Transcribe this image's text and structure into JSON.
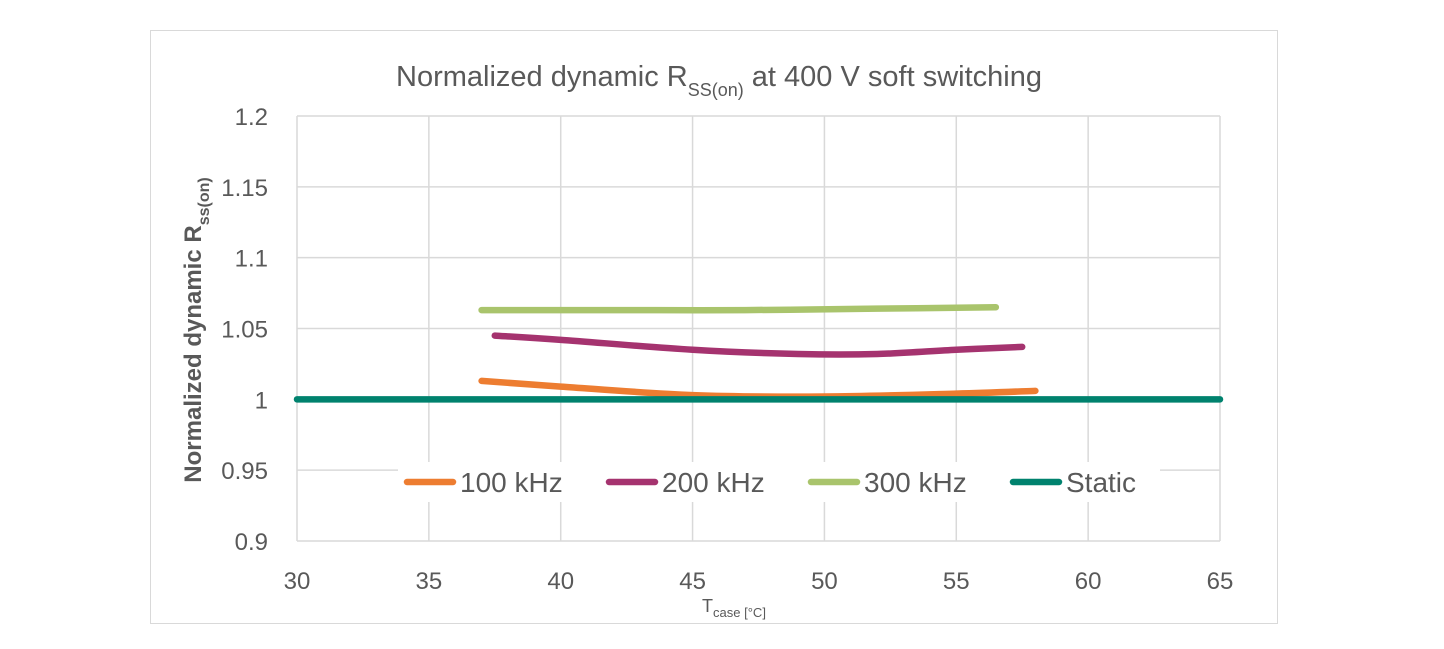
{
  "chart_data": {
    "type": "line",
    "title": {
      "prefix": "Normalized dynamic R",
      "subscript": "SS(on)",
      "suffix": " at 400 V soft switching"
    },
    "xlabel": {
      "main": "T",
      "subscript": "case [°C]"
    },
    "ylabel": {
      "main": "Normalized dynamic R",
      "subscript": "ss(on)"
    },
    "xlim": [
      30,
      65
    ],
    "ylim": [
      0.9,
      1.2
    ],
    "x_ticks": [
      30,
      35,
      40,
      45,
      50,
      55,
      60,
      65
    ],
    "y_ticks": [
      0.9,
      0.95,
      1,
      1.05,
      1.1,
      1.15,
      1.2
    ],
    "x_tick_labels": [
      "30",
      "35",
      "40",
      "45",
      "50",
      "55",
      "60",
      "65"
    ],
    "y_tick_labels": [
      "0.9",
      "0.95",
      "1",
      "1.05",
      "1.1",
      "1.15",
      "1.2"
    ],
    "grid": true,
    "legend_position": "bottom-inside",
    "series": [
      {
        "name": "100 kHz",
        "color": "#ed7d31",
        "x": [
          37,
          40,
          45,
          50,
          55,
          58
        ],
        "y": [
          1.013,
          1.009,
          1.003,
          1.002,
          1.004,
          1.006
        ]
      },
      {
        "name": "200 kHz",
        "color": "#a5336f",
        "x": [
          37.5,
          40,
          45,
          49,
          52,
          55,
          57.5
        ],
        "y": [
          1.045,
          1.042,
          1.035,
          1.032,
          1.032,
          1.035,
          1.037
        ]
      },
      {
        "name": "300 kHz",
        "color": "#a9c46c",
        "x": [
          37,
          42,
          47,
          52,
          56.5
        ],
        "y": [
          1.063,
          1.063,
          1.063,
          1.064,
          1.065
        ]
      },
      {
        "name": "Static",
        "color": "#00826e",
        "x": [
          30,
          65
        ],
        "y": [
          1.0,
          1.0
        ]
      }
    ]
  }
}
